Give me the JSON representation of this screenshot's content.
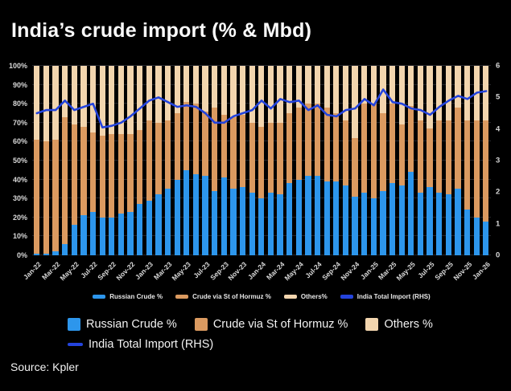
{
  "title": "India’s crude import (% & Mbd)",
  "source": "Source: Kpler",
  "colors": {
    "background": "#000000",
    "russian_bar": "#2d96ec",
    "hormuz_bar": "#db9a60",
    "others_bar": "#f2d5ae",
    "total_line": "#2444dd",
    "grid": "#25262b",
    "axis_text": "#d8d8d8",
    "title_text": "#fafafa"
  },
  "chart_data": {
    "type": "stacked_bar_line_combo",
    "title": "India’s crude import (% & Mbd)",
    "x": [
      "Jan-22",
      "Feb-22",
      "Mar-22",
      "Apr-22",
      "May-22",
      "Jun-22",
      "Jul-22",
      "Aug-22",
      "Sep-22",
      "Oct-22",
      "Nov-22",
      "Dec-22",
      "Jan-23",
      "Feb-23",
      "Mar-23",
      "Apr-23",
      "May-23",
      "Jun-23",
      "Jul-23",
      "Aug-23",
      "Sep-23",
      "Oct-23",
      "Nov-23",
      "Dec-23",
      "Jan-24",
      "Feb-24",
      "Mar-24",
      "Apr-24",
      "May-24",
      "Jun-24",
      "Jul-24",
      "Aug-24",
      "Sep-24",
      "Oct-24",
      "Nov-24",
      "Dec-24",
      "Jan-25",
      "Feb-25",
      "Mar-25",
      "Apr-25",
      "May-25",
      "Jun-25",
      "Jul-25",
      "Aug-25",
      "Sep-25",
      "Oct-25",
      "Nov-25",
      "Dec-25",
      "Jan-26"
    ],
    "x_tick_labels": [
      "Jan-22",
      "Mar-22",
      "May-22",
      "Jul-22",
      "Sep-22",
      "Nov-22",
      "Jan-23",
      "Mar-23",
      "May-23",
      "Jul-23",
      "Sep-23",
      "Nov-23",
      "Jan-24",
      "Mar-24",
      "May-24",
      "Jul-24",
      "Sep-24",
      "Nov-24",
      "Jan-25",
      "Mar-25",
      "May-25",
      "Jul-25",
      "Sep-25",
      "Nov-25",
      "Jan-26"
    ],
    "x_tick_every": 2,
    "series": [
      {
        "name": "Russian Crude %",
        "kind": "bar",
        "axis": "left",
        "color_key": "russian_bar",
        "values": [
          1,
          1,
          2,
          6,
          16,
          21,
          23,
          20,
          20,
          22,
          23,
          27,
          29,
          32,
          35,
          40,
          45,
          43,
          42,
          34,
          41,
          35,
          36,
          33,
          30,
          33,
          32,
          38,
          40,
          42,
          42,
          39,
          39,
          37,
          31,
          33,
          30,
          34,
          38,
          37,
          44,
          33,
          36,
          33,
          32,
          35,
          24,
          20,
          18
        ]
      },
      {
        "name": "Crude via St of Hormuz %",
        "kind": "bar",
        "axis": "left",
        "color_key": "hormuz_bar",
        "values": [
          60,
          59,
          59,
          67,
          53,
          47,
          42,
          43,
          44,
          42,
          41,
          39,
          42,
          38,
          36,
          35,
          36,
          37,
          34,
          44,
          33,
          38,
          38,
          37,
          38,
          37,
          38,
          37,
          38,
          38,
          38,
          39,
          36,
          34,
          31,
          47,
          50,
          41,
          42,
          32,
          35,
          38,
          31,
          38,
          39,
          43,
          47,
          51,
          53
        ]
      },
      {
        "name": "Others %",
        "kind": "bar",
        "axis": "left",
        "color_key": "others_bar",
        "values": [
          39,
          40,
          39,
          27,
          31,
          32,
          35,
          37,
          36,
          36,
          36,
          34,
          29,
          30,
          29,
          25,
          19,
          20,
          24,
          22,
          26,
          27,
          26,
          30,
          32,
          30,
          30,
          25,
          22,
          20,
          20,
          22,
          25,
          29,
          38,
          20,
          20,
          25,
          20,
          31,
          21,
          29,
          33,
          29,
          29,
          22,
          29,
          29,
          29
        ]
      },
      {
        "name": "India Total Import (RHS)",
        "kind": "line",
        "axis": "right",
        "color_key": "total_line",
        "values": [
          4.5,
          4.6,
          4.6,
          4.9,
          4.6,
          4.7,
          4.8,
          4.05,
          4.1,
          4.2,
          4.4,
          4.65,
          4.9,
          5.0,
          4.85,
          4.7,
          4.75,
          4.7,
          4.5,
          4.2,
          4.2,
          4.4,
          4.5,
          4.6,
          4.9,
          4.65,
          4.95,
          4.85,
          4.9,
          4.6,
          4.75,
          4.45,
          4.4,
          4.6,
          4.65,
          4.95,
          4.75,
          5.25,
          4.85,
          4.8,
          4.65,
          4.6,
          4.45,
          4.7,
          4.9,
          5.05,
          4.95,
          5.15,
          5.2
        ]
      }
    ],
    "left_axis": {
      "min": 0,
      "max": 100,
      "tick_step": 10,
      "tick_labels": [
        "0%",
        "10%",
        "20%",
        "30%",
        "40%",
        "50%",
        "60%",
        "70%",
        "80%",
        "90%",
        "100%"
      ]
    },
    "right_axis": {
      "min": 0,
      "max": 6,
      "tick_step": 1,
      "tick_labels": [
        "0",
        "1",
        "2",
        "3",
        "4",
        "5",
        "6"
      ]
    },
    "grid": "horizontal",
    "legend_inline": [
      {
        "label": "Russian Crude %",
        "color_key": "russian_bar",
        "shape": "bar"
      },
      {
        "label": "Crude via St of Hormuz %",
        "color_key": "hormuz_bar",
        "shape": "bar"
      },
      {
        "label": "Others%",
        "color_key": "others_bar",
        "shape": "bar"
      },
      {
        "label": "India Total Import (RHS)",
        "color_key": "total_line",
        "shape": "line"
      }
    ],
    "legend_bottom": [
      {
        "label": "Russian Crude %",
        "color_key": "russian_bar",
        "shape": "bar"
      },
      {
        "label": "Crude via St of Hormuz %",
        "color_key": "hormuz_bar",
        "shape": "bar"
      },
      {
        "label": "Others %",
        "color_key": "others_bar",
        "shape": "bar"
      },
      {
        "label": "India Total Import (RHS)",
        "color_key": "total_line",
        "shape": "line"
      }
    ]
  }
}
